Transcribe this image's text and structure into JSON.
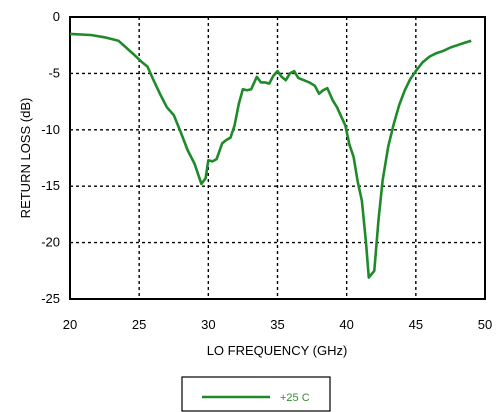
{
  "chart_data": {
    "type": "line",
    "title": "",
    "xlabel": "LO FREQUENCY (GHz)",
    "ylabel": "RETURN LOSS  (dB)",
    "xlim": [
      20,
      50
    ],
    "ylim": [
      -25,
      0
    ],
    "xticks": [
      20,
      25,
      30,
      35,
      40,
      45,
      50
    ],
    "yticks": [
      0,
      -5,
      -10,
      -15,
      -20,
      -25
    ],
    "xtick_labels": [
      "20",
      "25",
      "30",
      "35",
      "40",
      "45",
      "50"
    ],
    "ytick_labels": [
      "0",
      "-5",
      "-10",
      "-15",
      "-20",
      "-25"
    ],
    "grid": true,
    "legend_position": "bottom-center",
    "series": [
      {
        "name": "+25 C",
        "color": "#1f8a2a",
        "x": [
          20,
          21.5,
          22.5,
          23.5,
          24.5,
          25.2,
          25.6,
          26.0,
          26.5,
          27.0,
          27.5,
          28.0,
          28.5,
          29.0,
          29.5,
          29.8,
          30.0,
          30.3,
          30.6,
          31.0,
          31.3,
          31.6,
          31.9,
          32.2,
          32.5,
          32.8,
          33.1,
          33.5,
          33.8,
          34.1,
          34.4,
          34.7,
          35.0,
          35.3,
          35.6,
          35.9,
          36.2,
          36.5,
          36.9,
          37.3,
          37.7,
          38.0,
          38.3,
          38.6,
          39.0,
          39.3,
          39.6,
          39.9,
          40.2,
          40.5,
          40.8,
          41.1,
          41.4,
          41.6,
          42.0,
          42.3,
          42.6,
          43.0,
          43.4,
          43.8,
          44.2,
          44.6,
          45.0,
          45.5,
          46.0,
          46.5,
          47.0,
          47.5,
          48.0,
          48.5,
          49.0
        ],
        "y": [
          -1.5,
          -1.6,
          -1.8,
          -2.1,
          -3.2,
          -4.0,
          -4.4,
          -5.5,
          -6.8,
          -8.0,
          -8.7,
          -10.2,
          -11.8,
          -13.0,
          -14.8,
          -14.3,
          -12.7,
          -12.8,
          -12.6,
          -11.2,
          -10.9,
          -10.7,
          -9.6,
          -7.7,
          -6.4,
          -6.5,
          -6.4,
          -5.3,
          -5.8,
          -5.8,
          -5.9,
          -5.2,
          -4.8,
          -5.3,
          -5.6,
          -5.0,
          -4.8,
          -5.4,
          -5.6,
          -5.8,
          -6.1,
          -6.8,
          -6.5,
          -6.3,
          -7.4,
          -8.0,
          -8.8,
          -9.6,
          -11.3,
          -12.4,
          -14.6,
          -16.3,
          -20.0,
          -23.1,
          -22.5,
          -18.0,
          -14.5,
          -11.5,
          -9.5,
          -7.8,
          -6.5,
          -5.5,
          -4.8,
          -4.0,
          -3.5,
          -3.2,
          -3.0,
          -2.7,
          -2.5,
          -2.3,
          -2.1
        ]
      }
    ]
  }
}
